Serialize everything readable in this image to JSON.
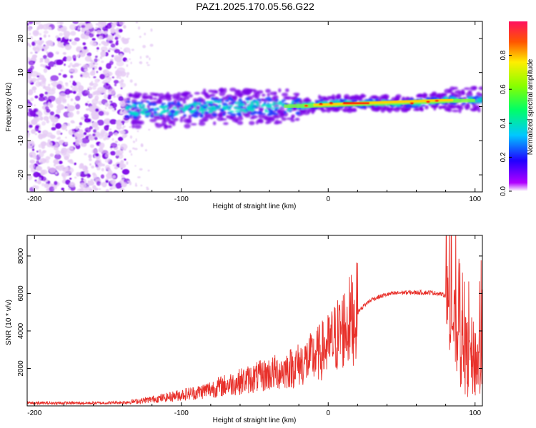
{
  "title": "PAZ1.2025.170.05.56.G22",
  "chart_data": [
    {
      "type": "heatmap",
      "xlabel": "Height of straight line (km)",
      "ylabel": "Frequency (Hz)",
      "xlim": [
        -205,
        105
      ],
      "ylim": [
        -25,
        25
      ],
      "xticks": [
        "-200",
        "-100",
        "0",
        "100"
      ],
      "xtick_values": [
        -200,
        -100,
        0,
        100
      ],
      "yticks": [
        "-20",
        "-10",
        "0",
        "10",
        "20"
      ],
      "ytick_values": [
        -20,
        -10,
        0,
        10,
        20
      ],
      "colorbar": {
        "label": "Normalized spectral amplitude",
        "range": [
          0,
          1
        ],
        "ticks": [
          "0.0",
          "0.2",
          "0.4",
          "0.6",
          "0.8"
        ],
        "tick_values": [
          0.0,
          0.2,
          0.4,
          0.6,
          0.8
        ]
      },
      "regions": {
        "noise_x_range": [
          -205,
          -137
        ],
        "scatter_x_range": [
          -137,
          -120
        ],
        "signal_x_range": [
          -137,
          105
        ]
      },
      "signal_center_line": {
        "x": [
          -137,
          -120,
          -100,
          -80,
          -60,
          -40,
          -20,
          0,
          20,
          40,
          60,
          80,
          100,
          105
        ],
        "freq": [
          -1,
          -1,
          -1,
          0,
          0,
          0,
          0,
          1,
          1,
          1,
          1,
          2,
          2,
          2
        ]
      },
      "colors": {
        "noise_low": "#e6ccf5",
        "noise_high": "#7a00e6",
        "band_mid": "#00e0c8",
        "band_peak": "#ff0000"
      }
    },
    {
      "type": "line",
      "xlabel": "Height of straight line (km)",
      "ylabel": "SNR (10 * v/v)",
      "xlim": [
        -205,
        105
      ],
      "ylim": [
        0,
        9100
      ],
      "xticks": [
        "-200",
        "-100",
        "0",
        "100"
      ],
      "xtick_values": [
        -200,
        -100,
        0,
        100
      ],
      "yticks": [
        "2000",
        "4000",
        "6000",
        "8000"
      ],
      "ytick_values": [
        2000,
        4000,
        6000,
        8000
      ],
      "series": [
        {
          "color": "#e8302a",
          "x": [
            -205,
            -180,
            -160,
            -140,
            -130,
            -120,
            -110,
            -100,
            -90,
            -80,
            -70,
            -60,
            -50,
            -40,
            -30,
            -20,
            -10,
            0,
            10,
            20,
            25,
            30,
            40,
            50,
            60,
            70,
            75,
            80,
            85,
            90,
            95,
            100,
            105
          ],
          "y": [
            150,
            150,
            150,
            180,
            250,
            350,
            450,
            600,
            700,
            900,
            1100,
            1300,
            1500,
            1700,
            1900,
            2200,
            2600,
            3200,
            4100,
            5000,
            5400,
            5700,
            5950,
            6050,
            6050,
            6050,
            6000,
            5900,
            4500,
            3000,
            2600,
            2500,
            2300
          ]
        }
      ]
    }
  ]
}
